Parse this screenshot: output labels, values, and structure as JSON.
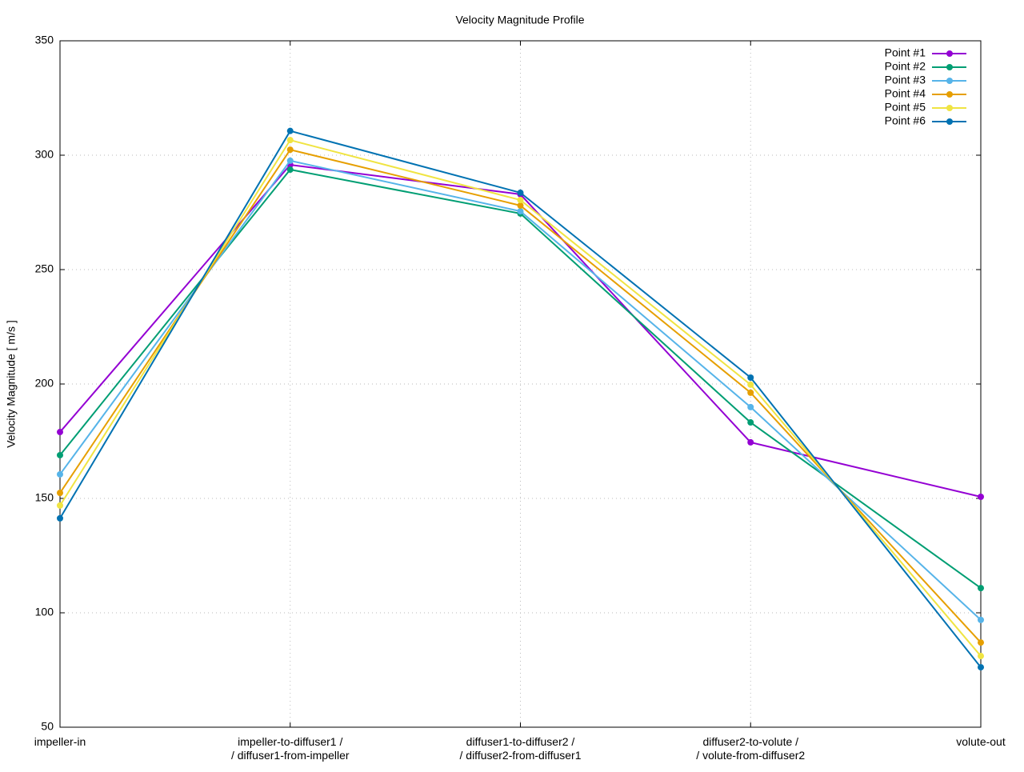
{
  "chart_data": {
    "type": "line",
    "title": "Velocity Magnitude Profile",
    "y_label": "Velocity Magnitude [ m/s ]",
    "categories": [
      "impeller-in",
      "impeller-to-diffuser1 /\n/ diffuser1-from-impeller",
      "diffuser1-to-diffuser2 /\n/ diffuser2-from-diffuser1",
      "diffuser2-to-volute /\n/ volute-from-diffuser2",
      "volute-out"
    ],
    "series": [
      {
        "name": "Point #1",
        "color": "#9400d3",
        "values": [
          179,
          295.8,
          282.9,
          174.5,
          150.7
        ]
      },
      {
        "name": "Point #2",
        "color": "#009e73",
        "values": [
          168.9,
          293.7,
          274.5,
          183.2,
          110.8
        ]
      },
      {
        "name": "Point #3",
        "color": "#56b4e9",
        "values": [
          160.5,
          297.6,
          275.5,
          189.9,
          96.9
        ]
      },
      {
        "name": "Point #4",
        "color": "#e69f00",
        "values": [
          152.4,
          302.4,
          278,
          196.2,
          87
        ]
      },
      {
        "name": "Point #5",
        "color": "#f0e442",
        "values": [
          146.9,
          306.6,
          280.4,
          199.7,
          81.1
        ]
      },
      {
        "name": "Point #6",
        "color": "#0072b2",
        "values": [
          141.3,
          310.6,
          283.6,
          202.8,
          76.2
        ]
      }
    ],
    "ylim": [
      50,
      350
    ],
    "yticks": [
      50,
      100,
      150,
      200,
      250,
      300,
      350
    ],
    "grid": true,
    "legend": "top-right"
  }
}
